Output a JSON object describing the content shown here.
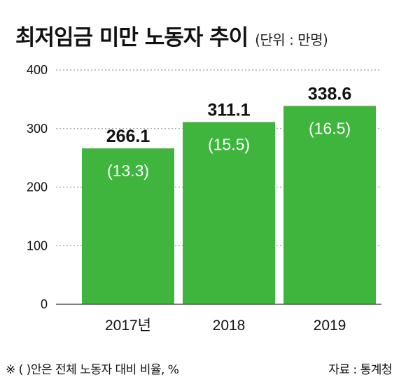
{
  "header": {
    "title": "최저임금 미만 노동자 추이",
    "unit": "(단위 : 만명)"
  },
  "footer": {
    "note": "※ (  )안은 전체 노동자 대비 비율, %",
    "source": "자료 : 통계청"
  },
  "colors": {
    "bar": "#3fb53d",
    "grid": "#9a9a9a",
    "axis": "#555555",
    "text": "#111111",
    "inner_label": "#ffffff"
  },
  "chart_data": {
    "type": "bar",
    "title": "최저임금 미만 노동자 추이",
    "ylabel": "",
    "xlabel": "",
    "categories": [
      "2017년",
      "2018",
      "2019"
    ],
    "values": [
      266.1,
      311.1,
      338.6
    ],
    "value_labels": [
      "266.1",
      "311.1",
      "338.6"
    ],
    "inner_labels": [
      "(13.3)",
      "(15.5)",
      "(16.5)"
    ],
    "ylim": [
      0,
      400
    ],
    "yticks": [
      0,
      100,
      200,
      300,
      400
    ],
    "ytick_labels": [
      "0",
      "100",
      "200",
      "300",
      "400"
    ],
    "grid": true,
    "grid_style": "dotted"
  }
}
